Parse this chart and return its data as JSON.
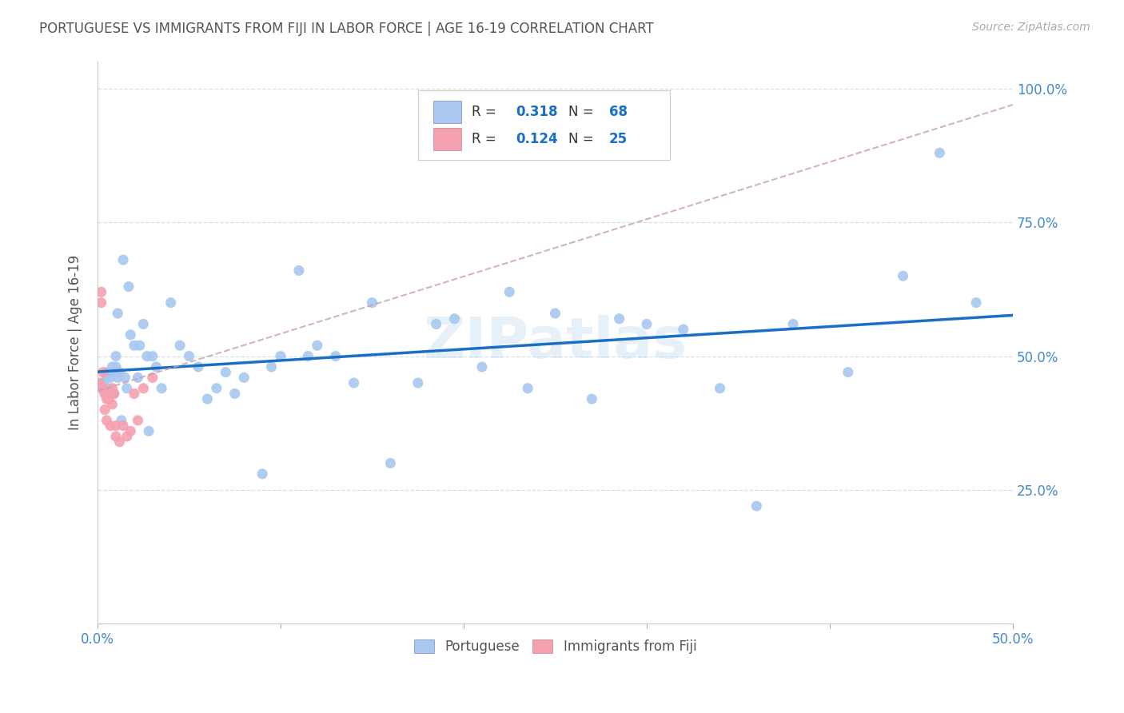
{
  "title": "PORTUGUESE VS IMMIGRANTS FROM FIJI IN LABOR FORCE | AGE 16-19 CORRELATION CHART",
  "source": "Source: ZipAtlas.com",
  "ylabel": "In Labor Force | Age 16-19",
  "xlim": [
    0.0,
    0.5
  ],
  "ylim": [
    0.0,
    1.05
  ],
  "xticks": [
    0.0,
    0.1,
    0.2,
    0.3,
    0.4,
    0.5
  ],
  "xticklabels": [
    "0.0%",
    "",
    "",
    "",
    "",
    "50.0%"
  ],
  "yticks": [
    0.0,
    0.25,
    0.5,
    0.75,
    1.0
  ],
  "yticklabels": [
    "",
    "25.0%",
    "50.0%",
    "75.0%",
    "100.0%"
  ],
  "portuguese_R": 0.318,
  "portuguese_N": 68,
  "fiji_R": 0.124,
  "fiji_N": 25,
  "blue_color": "#a8c8f0",
  "pink_color": "#f5a0b0",
  "blue_line_color": "#1a6fc4",
  "pink_line_color": "#c8a0b0",
  "tick_color": "#4488cc",
  "title_color": "#555555",
  "watermark": "ZIPatlas",
  "portuguese_x": [
    0.002,
    0.003,
    0.004,
    0.005,
    0.006,
    0.007,
    0.008,
    0.009,
    0.01,
    0.01,
    0.011,
    0.012,
    0.013,
    0.015,
    0.016,
    0.018,
    0.02,
    0.022,
    0.025,
    0.027,
    0.03,
    0.032,
    0.035,
    0.04,
    0.045,
    0.05,
    0.055,
    0.06,
    0.065,
    0.07,
    0.075,
    0.08,
    0.09,
    0.095,
    0.1,
    0.11,
    0.115,
    0.12,
    0.13,
    0.14,
    0.15,
    0.16,
    0.175,
    0.185,
    0.195,
    0.21,
    0.225,
    0.235,
    0.25,
    0.27,
    0.285,
    0.3,
    0.32,
    0.34,
    0.36,
    0.38,
    0.41,
    0.44,
    0.46,
    0.48,
    0.005,
    0.007,
    0.009,
    0.011,
    0.014,
    0.017,
    0.023,
    0.028
  ],
  "portuguese_y": [
    0.44,
    0.45,
    0.43,
    0.46,
    0.44,
    0.46,
    0.48,
    0.43,
    0.5,
    0.48,
    0.46,
    0.47,
    0.38,
    0.46,
    0.44,
    0.54,
    0.52,
    0.46,
    0.56,
    0.5,
    0.5,
    0.48,
    0.44,
    0.6,
    0.52,
    0.5,
    0.48,
    0.42,
    0.44,
    0.47,
    0.43,
    0.46,
    0.28,
    0.48,
    0.5,
    0.66,
    0.5,
    0.52,
    0.5,
    0.45,
    0.6,
    0.3,
    0.45,
    0.56,
    0.57,
    0.48,
    0.62,
    0.44,
    0.58,
    0.42,
    0.57,
    0.56,
    0.55,
    0.44,
    0.22,
    0.56,
    0.47,
    0.65,
    0.88,
    0.6,
    0.47,
    0.43,
    0.47,
    0.58,
    0.68,
    0.63,
    0.52,
    0.36
  ],
  "fiji_x": [
    0.001,
    0.002,
    0.002,
    0.003,
    0.003,
    0.004,
    0.004,
    0.005,
    0.005,
    0.006,
    0.006,
    0.007,
    0.008,
    0.008,
    0.009,
    0.01,
    0.01,
    0.012,
    0.014,
    0.016,
    0.018,
    0.02,
    0.022,
    0.025,
    0.03
  ],
  "fiji_y": [
    0.45,
    0.62,
    0.6,
    0.47,
    0.44,
    0.43,
    0.4,
    0.42,
    0.38,
    0.43,
    0.42,
    0.37,
    0.44,
    0.41,
    0.43,
    0.35,
    0.37,
    0.34,
    0.37,
    0.35,
    0.36,
    0.43,
    0.38,
    0.44,
    0.46
  ],
  "legend_R_color": "#1a6fc4",
  "legend_N_color": "#e05080"
}
